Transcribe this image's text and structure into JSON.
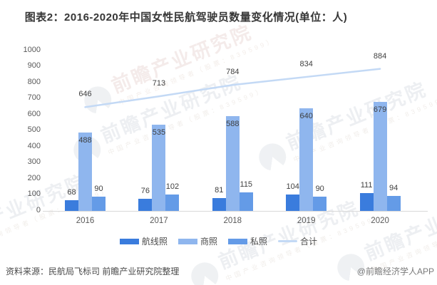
{
  "title": "图表2：2016-2020年中国女性民航驾驶员数量变化情况(单位：人)",
  "chart_data": {
    "type": "bar",
    "title": "图表2：2016-2020年中国女性民航驾驶员数量变化情况(单位：人)",
    "categories": [
      "2016",
      "2017",
      "2018",
      "2019",
      "2020"
    ],
    "series": [
      {
        "name": "航线照",
        "kind": "bar",
        "color": "#3a7cdd",
        "label_placement": "outside",
        "values": [
          68,
          76,
          81,
          104,
          111
        ]
      },
      {
        "name": "商照",
        "kind": "bar",
        "color": "#8fb6ee",
        "label_placement": "inside",
        "values": [
          488,
          535,
          588,
          640,
          679
        ]
      },
      {
        "name": "私照",
        "kind": "bar",
        "color": "#649be7",
        "label_placement": "outside",
        "values": [
          90,
          102,
          115,
          90,
          94
        ]
      },
      {
        "name": "合计",
        "kind": "line",
        "color": "#c3d9f5",
        "label_placement": "above",
        "values": [
          646,
          713,
          784,
          834,
          884
        ]
      }
    ],
    "xlabel": "",
    "ylabel": "",
    "ylim": [
      0,
      1000
    ],
    "ytick_step": 100,
    "yticks": [
      0,
      100,
      200,
      300,
      400,
      500,
      600,
      700,
      800,
      900,
      1000
    ],
    "grid": false,
    "legend_position": "bottom",
    "unit": "人"
  },
  "footer": {
    "source": "资料来源：民航局飞标司 前瞻产业研究院整理",
    "credit": "@前瞻经济学人APP"
  },
  "watermark": {
    "brand": "前瞻产业研究院",
    "tagline": "中国产业咨询领导者（股票：839599）"
  },
  "colors": {
    "axis_line": "#d9d9d9",
    "axis_text": "#595959",
    "data_label": "#3f3f3f",
    "title_text": "#363636"
  }
}
